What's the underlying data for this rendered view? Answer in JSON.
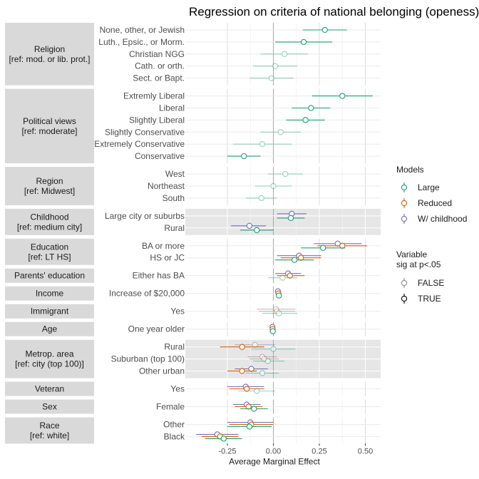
{
  "chart_data": {
    "type": "coefficient-dot",
    "title": "Regression on criteria of national belonging (openess)",
    "xlabel": "Average Marginal Effect",
    "ylabel": "",
    "xlim": [
      -0.47,
      0.6
    ],
    "xticks": [
      -0.25,
      0.0,
      0.25,
      0.5
    ],
    "xtick_labels": [
      "-0.25",
      "0.00",
      "0.25",
      "0.50"
    ],
    "zero_line": 0,
    "legend": {
      "models_title": "Models",
      "models": [
        {
          "name": "Large",
          "color": "#1b9e77"
        },
        {
          "name": "Reduced",
          "color": "#d95f02"
        },
        {
          "name": "W/ childhood",
          "color": "#7570b3"
        }
      ],
      "sig_title_line1": "Variable",
      "sig_title_line2": "sig at p<.05",
      "sig": [
        {
          "name": "FALSE"
        },
        {
          "name": "TRUE"
        }
      ]
    },
    "groups": [
      {
        "label_lines": [
          "Religion",
          "[ref: mod. or lib. prot.]"
        ],
        "shaded": false,
        "rows": [
          {
            "label": "None, other, or Jewish",
            "est": [
              {
                "m": "Large",
                "v": 0.28,
                "lo": 0.16,
                "hi": 0.4,
                "sig": true
              }
            ]
          },
          {
            "label": "Luth., Epsic., or Morm.",
            "est": [
              {
                "m": "Large",
                "v": 0.165,
                "lo": 0.01,
                "hi": 0.32,
                "sig": true
              }
            ]
          },
          {
            "label": "Christian NGG",
            "est": [
              {
                "m": "Large",
                "v": 0.06,
                "lo": -0.07,
                "hi": 0.19,
                "sig": false
              }
            ]
          },
          {
            "label": "Cath. or orth.",
            "est": [
              {
                "m": "Large",
                "v": 0.01,
                "lo": -0.11,
                "hi": 0.13,
                "sig": false
              }
            ]
          },
          {
            "label": "Sect. or Bapt.",
            "est": [
              {
                "m": "Large",
                "v": -0.01,
                "lo": -0.13,
                "hi": 0.11,
                "sig": false
              }
            ]
          }
        ]
      },
      {
        "label_lines": [
          "Political views",
          "[ref: moderate]"
        ],
        "shaded": false,
        "rows": [
          {
            "label": "Extremly Liberal",
            "est": [
              {
                "m": "Large",
                "v": 0.375,
                "lo": 0.21,
                "hi": 0.54,
                "sig": true
              }
            ]
          },
          {
            "label": "Liberal",
            "est": [
              {
                "m": "Large",
                "v": 0.205,
                "lo": 0.1,
                "hi": 0.31,
                "sig": true
              }
            ]
          },
          {
            "label": "Slightly Liberal",
            "est": [
              {
                "m": "Large",
                "v": 0.175,
                "lo": 0.07,
                "hi": 0.28,
                "sig": true
              }
            ]
          },
          {
            "label": "Slightly Conservative",
            "est": [
              {
                "m": "Large",
                "v": 0.04,
                "lo": -0.07,
                "hi": 0.15,
                "sig": false
              }
            ]
          },
          {
            "label": "Extremely Conservative",
            "est": [
              {
                "m": "Large",
                "v": -0.06,
                "lo": -0.22,
                "hi": 0.1,
                "sig": false
              }
            ]
          },
          {
            "label": "Conservative",
            "est": [
              {
                "m": "Large",
                "v": -0.16,
                "lo": -0.25,
                "hi": -0.07,
                "sig": true
              }
            ]
          }
        ]
      },
      {
        "label_lines": [
          "Region",
          "[ref: Midwest]"
        ],
        "shaded": false,
        "rows": [
          {
            "label": "West",
            "est": [
              {
                "m": "Large",
                "v": 0.065,
                "lo": -0.03,
                "hi": 0.16,
                "sig": false
              }
            ]
          },
          {
            "label": "Northeast",
            "est": [
              {
                "m": "Large",
                "v": 0.0,
                "lo": -0.1,
                "hi": 0.1,
                "sig": false
              }
            ]
          },
          {
            "label": "South",
            "est": [
              {
                "m": "Large",
                "v": -0.065,
                "lo": -0.15,
                "hi": 0.02,
                "sig": false
              }
            ]
          }
        ]
      },
      {
        "label_lines": [
          "Childhood",
          "[ref: medium city]"
        ],
        "shaded": true,
        "rows": [
          {
            "label": "Large city or suburbs",
            "est": [
              {
                "m": "W/ childhood",
                "v": 0.1,
                "lo": 0.02,
                "hi": 0.18,
                "sig": true
              },
              {
                "m": "Large",
                "v": 0.095,
                "lo": 0.02,
                "hi": 0.17,
                "sig": true
              }
            ]
          },
          {
            "label": "Rural",
            "est": [
              {
                "m": "W/ childhood",
                "v": -0.13,
                "lo": -0.23,
                "hi": -0.04,
                "sig": true
              },
              {
                "m": "Large",
                "v": -0.09,
                "lo": -0.18,
                "hi": 0.0,
                "sig": true
              }
            ]
          }
        ]
      },
      {
        "label_lines": [
          "Education",
          "[ref: LT HS]"
        ],
        "shaded": false,
        "rows": [
          {
            "label": "BA or more",
            "est": [
              {
                "m": "W/ childhood",
                "v": 0.35,
                "lo": 0.22,
                "hi": 0.48,
                "sig": true
              },
              {
                "m": "Reduced",
                "v": 0.375,
                "lo": 0.24,
                "hi": 0.51,
                "sig": true
              },
              {
                "m": "Large",
                "v": 0.27,
                "lo": 0.15,
                "hi": 0.39,
                "sig": true
              }
            ]
          },
          {
            "label": "HS or JC",
            "est": [
              {
                "m": "W/ childhood",
                "v": 0.14,
                "lo": 0.02,
                "hi": 0.26,
                "sig": true
              },
              {
                "m": "Reduced",
                "v": 0.15,
                "lo": 0.04,
                "hi": 0.26,
                "sig": true
              },
              {
                "m": "Large",
                "v": 0.115,
                "lo": 0.01,
                "hi": 0.22,
                "sig": true
              }
            ]
          }
        ]
      },
      {
        "label_lines": [
          "Parents' education"
        ],
        "shaded": false,
        "rows": [
          {
            "label": "Either has BA",
            "est": [
              {
                "m": "W/ childhood",
                "v": 0.08,
                "lo": 0.01,
                "hi": 0.15,
                "sig": true
              },
              {
                "m": "Reduced",
                "v": 0.09,
                "lo": 0.02,
                "hi": 0.17,
                "sig": true
              },
              {
                "m": "Large",
                "v": 0.05,
                "lo": -0.03,
                "hi": 0.13,
                "sig": false
              }
            ]
          }
        ]
      },
      {
        "label_lines": [
          "Income"
        ],
        "shaded": false,
        "rows": [
          {
            "label": "Increase of $20,000",
            "est": [
              {
                "m": "W/ childhood",
                "v": 0.025,
                "lo": 0.015,
                "hi": 0.035,
                "sig": true
              },
              {
                "m": "Reduced",
                "v": 0.028,
                "lo": 0.018,
                "hi": 0.038,
                "sig": true
              },
              {
                "m": "Large",
                "v": 0.03,
                "lo": 0.02,
                "hi": 0.04,
                "sig": true
              }
            ]
          }
        ]
      },
      {
        "label_lines": [
          "Immigrant"
        ],
        "shaded": false,
        "rows": [
          {
            "label": "Yes",
            "est": [
              {
                "m": "W/ childhood",
                "v": 0.015,
                "lo": -0.09,
                "hi": 0.12,
                "sig": false
              },
              {
                "m": "Reduced",
                "v": 0.02,
                "lo": -0.08,
                "hi": 0.12,
                "sig": false
              },
              {
                "m": "Large",
                "v": 0.03,
                "lo": -0.06,
                "hi": 0.13,
                "sig": false
              }
            ]
          }
        ]
      },
      {
        "label_lines": [
          "Age"
        ],
        "shaded": false,
        "rows": [
          {
            "label": "One year older",
            "est": [
              {
                "m": "W/ childhood",
                "v": -0.005,
                "lo": -0.008,
                "hi": -0.002,
                "sig": true
              },
              {
                "m": "Reduced",
                "v": -0.004,
                "lo": -0.007,
                "hi": -0.001,
                "sig": true
              },
              {
                "m": "Large",
                "v": -0.003,
                "lo": -0.006,
                "hi": 0.0,
                "sig": true
              }
            ]
          }
        ]
      },
      {
        "label_lines": [
          "Metrop. area",
          "[ref: city (top 100)]"
        ],
        "shaded": true,
        "rows": [
          {
            "label": "Rural",
            "est": [
              {
                "m": "W/ childhood",
                "v": -0.1,
                "lo": -0.21,
                "hi": 0.01,
                "sig": false
              },
              {
                "m": "Reduced",
                "v": -0.17,
                "lo": -0.29,
                "hi": -0.05,
                "sig": true
              },
              {
                "m": "Large",
                "v": 0.0,
                "lo": -0.12,
                "hi": 0.12,
                "sig": false
              }
            ]
          },
          {
            "label": "Suburban (top 100)",
            "est": [
              {
                "m": "W/ childhood",
                "v": -0.06,
                "lo": -0.14,
                "hi": 0.02,
                "sig": false
              },
              {
                "m": "Reduced",
                "v": -0.05,
                "lo": -0.13,
                "hi": 0.03,
                "sig": false
              },
              {
                "m": "Large",
                "v": -0.03,
                "lo": -0.11,
                "hi": 0.06,
                "sig": false
              }
            ]
          },
          {
            "label": "Other urban",
            "est": [
              {
                "m": "W/ childhood",
                "v": -0.12,
                "lo": -0.21,
                "hi": -0.03,
                "sig": true
              },
              {
                "m": "Reduced",
                "v": -0.17,
                "lo": -0.25,
                "hi": -0.09,
                "sig": true
              },
              {
                "m": "Large",
                "v": -0.06,
                "lo": -0.15,
                "hi": 0.03,
                "sig": false
              }
            ]
          }
        ]
      },
      {
        "label_lines": [
          "Veteran"
        ],
        "shaded": false,
        "rows": [
          {
            "label": "Yes",
            "est": [
              {
                "m": "W/ childhood",
                "v": -0.15,
                "lo": -0.25,
                "hi": -0.05,
                "sig": true
              },
              {
                "m": "Reduced",
                "v": -0.145,
                "lo": -0.24,
                "hi": -0.05,
                "sig": true
              },
              {
                "m": "Large",
                "v": -0.09,
                "lo": -0.19,
                "hi": 0.01,
                "sig": false
              }
            ]
          }
        ]
      },
      {
        "label_lines": [
          "Sex"
        ],
        "shaded": false,
        "rows": [
          {
            "label": "Female",
            "est": [
              {
                "m": "W/ childhood",
                "v": -0.145,
                "lo": -0.22,
                "hi": -0.07,
                "sig": true
              },
              {
                "m": "Reduced",
                "v": -0.135,
                "lo": -0.21,
                "hi": -0.06,
                "sig": true
              },
              {
                "m": "Large",
                "v": -0.105,
                "lo": -0.18,
                "hi": -0.03,
                "sig": true
              }
            ]
          }
        ]
      },
      {
        "label_lines": [
          "Race",
          "[ref: white]"
        ],
        "shaded": false,
        "rows": [
          {
            "label": "Other",
            "est": [
              {
                "m": "W/ childhood",
                "v": -0.125,
                "lo": -0.25,
                "hi": 0.0,
                "sig": true
              },
              {
                "m": "Reduced",
                "v": -0.12,
                "lo": -0.24,
                "hi": 0.0,
                "sig": true
              },
              {
                "m": "Large",
                "v": -0.13,
                "lo": -0.25,
                "hi": -0.01,
                "sig": true
              }
            ]
          },
          {
            "label": "Black",
            "est": [
              {
                "m": "W/ childhood",
                "v": -0.305,
                "lo": -0.42,
                "hi": -0.19,
                "sig": true
              },
              {
                "m": "Reduced",
                "v": -0.29,
                "lo": -0.39,
                "hi": -0.19,
                "sig": true
              },
              {
                "m": "Large",
                "v": -0.27,
                "lo": -0.37,
                "hi": -0.17,
                "sig": true
              }
            ]
          }
        ]
      }
    ]
  }
}
